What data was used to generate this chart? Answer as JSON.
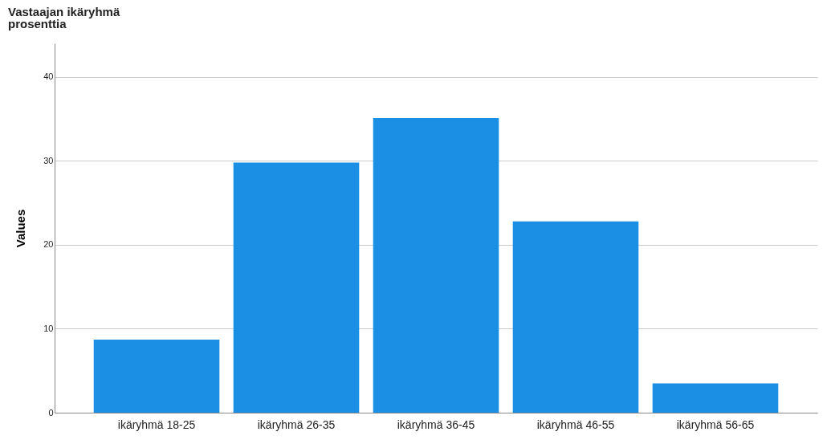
{
  "chart_data": {
    "type": "bar",
    "title": "Vastaajan ikäryhmä",
    "subtitle": "prosenttia",
    "ylabel": "Values",
    "categories": [
      "ikäryhmä 18-25",
      "ikäryhmä 26-35",
      "ikäryhmä 36-45",
      "ikäryhmä 46-55",
      "ikäryhmä 56-65"
    ],
    "values": [
      8.7,
      29.8,
      35.1,
      22.8,
      3.5
    ],
    "color": "#1a8fe3",
    "ylim": [
      0,
      44
    ],
    "yticks": [
      0,
      10,
      20,
      30,
      40
    ],
    "grid": "y"
  }
}
